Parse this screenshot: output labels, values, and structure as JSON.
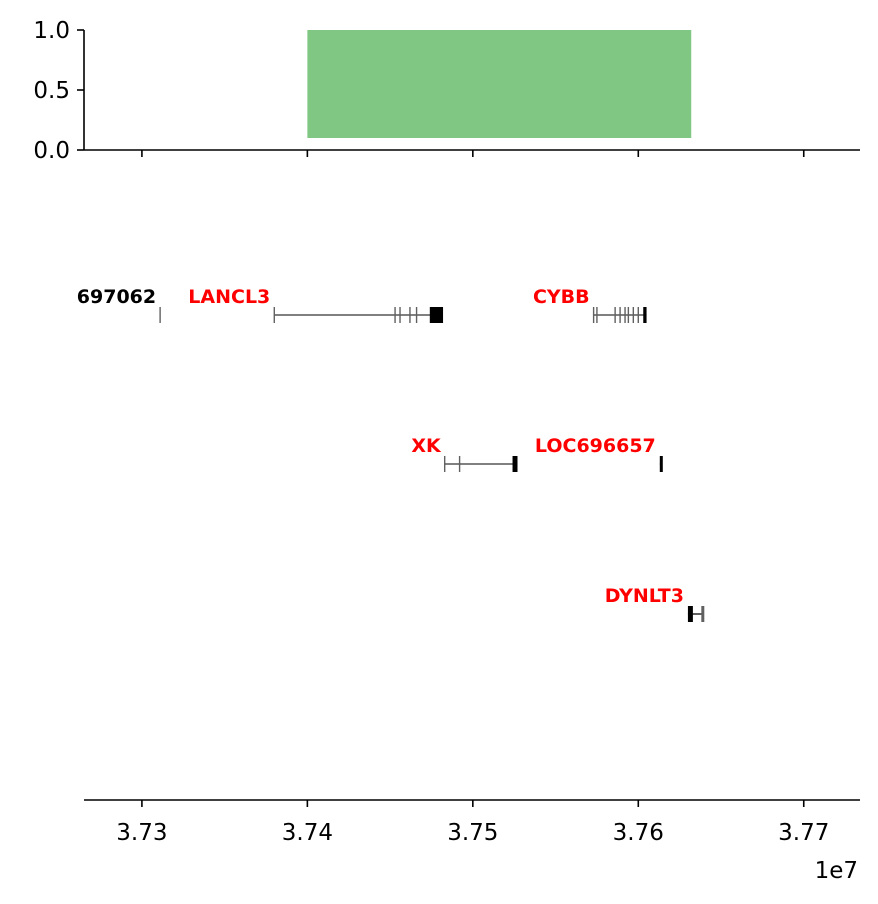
{
  "chart_data": [
    {
      "type": "bar",
      "panel": "region-track",
      "ylim": [
        0.0,
        1.0
      ],
      "yticks": [
        "0.0",
        "0.5",
        "1.0"
      ],
      "xlim": [
        37265000,
        37734000
      ],
      "xticks": [
        37300000,
        37400000,
        37500000,
        37600000,
        37700000
      ],
      "bars": [
        {
          "start": 37400000,
          "end": 37632000,
          "bottom": 0.1,
          "top": 1.0,
          "color": "#81c784"
        }
      ],
      "grid": false
    },
    {
      "type": "gene-track",
      "panel": "genes",
      "xlim": [
        37265000,
        37734000
      ],
      "xticks": [
        37300000,
        37400000,
        37500000,
        37600000,
        37700000
      ],
      "xtick_labels": [
        "3.73",
        "3.74",
        "3.75",
        "3.76",
        "3.77"
      ],
      "offset_text": "1e7",
      "genes": [
        {
          "name": "LOC697062",
          "label": "697062",
          "row": 0,
          "start": 37311000,
          "end": 37311000,
          "color": "#000000",
          "exons": [
            37311000
          ],
          "cds": []
        },
        {
          "name": "LANCL3",
          "label": "LANCL3",
          "row": 0,
          "start": 37380000,
          "end": 37480000,
          "color": "#ff0000",
          "exons": [
            37380000,
            37453000,
            37456000,
            37462000,
            37466000
          ],
          "cds": [
            [
              37474000,
              37482000
            ]
          ]
        },
        {
          "name": "CYBB",
          "label": "CYBB",
          "row": 0,
          "start": 37573000,
          "end": 37605000,
          "color": "#ff0000",
          "exons": [
            37573000,
            37575000,
            37586000,
            37589000,
            37592000,
            37594000,
            37597000,
            37600000
          ],
          "cds": [
            [
              37603000,
              37605000
            ]
          ]
        },
        {
          "name": "XK",
          "label": "XK",
          "row": 1,
          "start": 37483000,
          "end": 37527000,
          "color": "#ff0000",
          "exons": [
            37483000,
            37492000
          ],
          "cds": [
            [
              37524000,
              37527000
            ]
          ]
        },
        {
          "name": "LOC696657",
          "label": "LOC696657",
          "row": 1,
          "start": 37613000,
          "end": 37614000,
          "color": "#ff0000",
          "exons": [],
          "cds": [
            [
              37613000,
              37614000
            ]
          ]
        },
        {
          "name": "DYNLT3",
          "label": "DYNLT3",
          "row": 2,
          "start": 37630000,
          "end": 37639000,
          "color": "#ff0000",
          "exons": [],
          "cds": [
            [
              37630000,
              37633000
            ]
          ],
          "utr": [
            [
              37633000,
              37639000
            ]
          ]
        }
      ]
    }
  ]
}
